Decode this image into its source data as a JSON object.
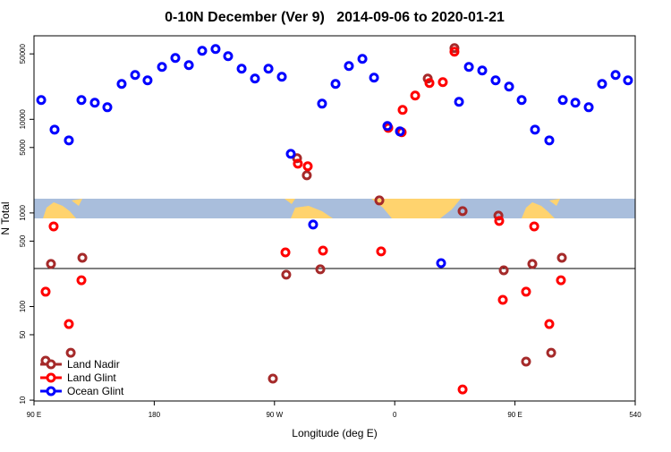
{
  "chart_data": {
    "type": "scatter",
    "title": "0-10N December (Ver 9)   2014-09-06 to 2020-01-21",
    "x_label": "Longitude (deg E)",
    "y_label": "N Total",
    "xlim": [
      90,
      540
    ],
    "ylim": [
      9.8,
      78000
    ],
    "log_y": true,
    "legend": "bottom-left",
    "xticks": [
      {
        "value": 90,
        "label": "90 E"
      },
      180,
      {
        "value": 270,
        "label": "90 W"
      },
      {
        "value": 360,
        "label": "0"
      },
      {
        "value": 450,
        "label": "90 E"
      },
      540
    ],
    "yticks": [
      10,
      50,
      100,
      500,
      1000,
      5000,
      10000,
      50000
    ],
    "reference_line": 255,
    "series": [
      {
        "name": "Land Nadir",
        "color": "#a52a2a",
        "x": [
          98.7,
          102.7,
          117.5,
          126.2,
          268.8,
          278.8,
          286.9,
          294.2,
          304.3,
          348.5,
          384.7,
          404.7,
          410.8,
          437.6,
          441.6,
          458.3,
          463.0,
          477.1,
          485.1
        ],
        "values": [
          26.4,
          285,
          32.1,
          332,
          17.0,
          219,
          3840,
          2520,
          250,
          1360,
          27250,
          57680,
          1045,
          936,
          244,
          25.8,
          285,
          32.1,
          332
        ]
      },
      {
        "name": "Land Glint",
        "color": "#ff0000",
        "x": [
          98.7,
          104.7,
          116.1,
          125.5,
          278.2,
          287.5,
          294.9,
          306.3,
          349.8,
          355.2,
          365.2,
          365.9,
          375.3,
          386.0,
          396.0,
          404.7,
          410.8,
          438.2,
          440.9,
          458.3,
          464.4,
          475.7,
          484.4
        ],
        "values": [
          144,
          718,
          65,
          191,
          379,
          3360,
          3150,
          396,
          388,
          8110,
          7270,
          12600,
          17950,
          24430,
          24950,
          52760,
          13.0,
          820,
          118,
          144,
          718,
          65,
          191
        ]
      },
      {
        "name": "Ocean Glint",
        "color": "#0000ff",
        "x": [
          95.4,
          105.4,
          116.1,
          125.5,
          135.5,
          144.9,
          155.6,
          165.7,
          175.0,
          185.8,
          195.8,
          205.9,
          215.9,
          225.9,
          235.3,
          245.4,
          255.4,
          265.5,
          275.5,
          282.2,
          298.9,
          305.6,
          315.7,
          325.7,
          335.8,
          344.5,
          354.5,
          363.9,
          394.7,
          408.1,
          415.5,
          425.5,
          435.5,
          445.6,
          455.0,
          465.0,
          475.7,
          485.8,
          495.2,
          505.2,
          515.2,
          525.3,
          534.6
        ],
        "values": [
          16070,
          7760,
          5960,
          16070,
          15030,
          13460,
          23880,
          29780,
          26070,
          36300,
          45260,
          37930,
          53950,
          56370,
          47300,
          34750,
          27250,
          34750,
          28500,
          4280,
          751,
          14700,
          23880,
          37100,
          44250,
          27860,
          8480,
          7430,
          291,
          15380,
          36300,
          33240,
          26070,
          22340,
          16070,
          7760,
          5960,
          16070,
          15030,
          13460,
          23880,
          29780,
          26070
        ]
      }
    ]
  }
}
